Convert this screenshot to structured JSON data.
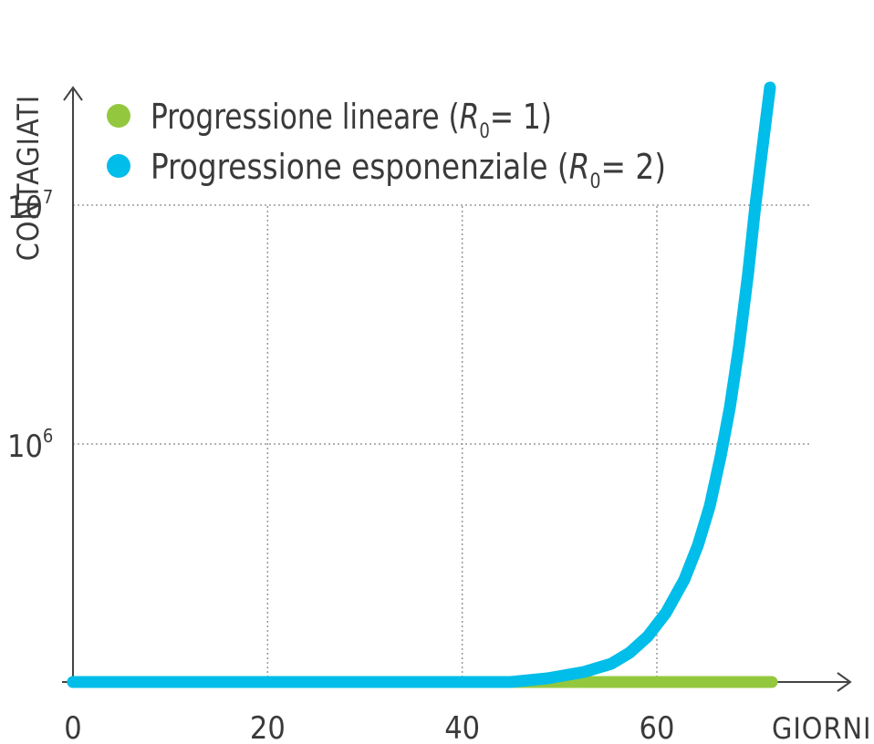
{
  "chart_data": {
    "type": "line",
    "ylabel": "CONTAGIATI",
    "xlabel": "GIORNI",
    "x_ticks": [
      "0",
      "20",
      "40",
      "60"
    ],
    "y_ticks": [
      {
        "base": "10",
        "exp": "6",
        "value": 1000000
      },
      {
        "base": "10",
        "exp": "7",
        "value": 10000000
      }
    ],
    "xlim": [
      0,
      70
    ],
    "ylim": [
      0,
      14000000
    ],
    "grid": true,
    "legend_position": "top-left",
    "series": [
      {
        "name": "Progressione lineare (R0 = 1)",
        "legend_prefix": "Progressione lineare (",
        "legend_sym": "R",
        "legend_sub": "0",
        "legend_suffix": "= 1)",
        "color": "#93c83e",
        "model": "linear",
        "x": [
          0,
          10,
          20,
          30,
          40,
          50,
          60,
          66
        ],
        "y": [
          0,
          10,
          20,
          30,
          40,
          50,
          60,
          66
        ]
      },
      {
        "name": "Progressione esponenziale (R0 = 2)",
        "legend_prefix": "Progressione esponenziale (",
        "legend_sym": "R",
        "legend_sub": "0",
        "legend_suffix": "= 2)",
        "color": "#00bde9",
        "model": "exponential",
        "x": [
          0,
          20,
          40,
          45,
          50,
          52,
          54,
          56,
          58,
          60,
          62,
          64,
          65
        ],
        "y": [
          1,
          1000,
          50000,
          120000,
          330000,
          450000,
          600000,
          850000,
          1150000,
          1600000,
          2400000,
          3600000,
          13400000
        ]
      }
    ]
  }
}
